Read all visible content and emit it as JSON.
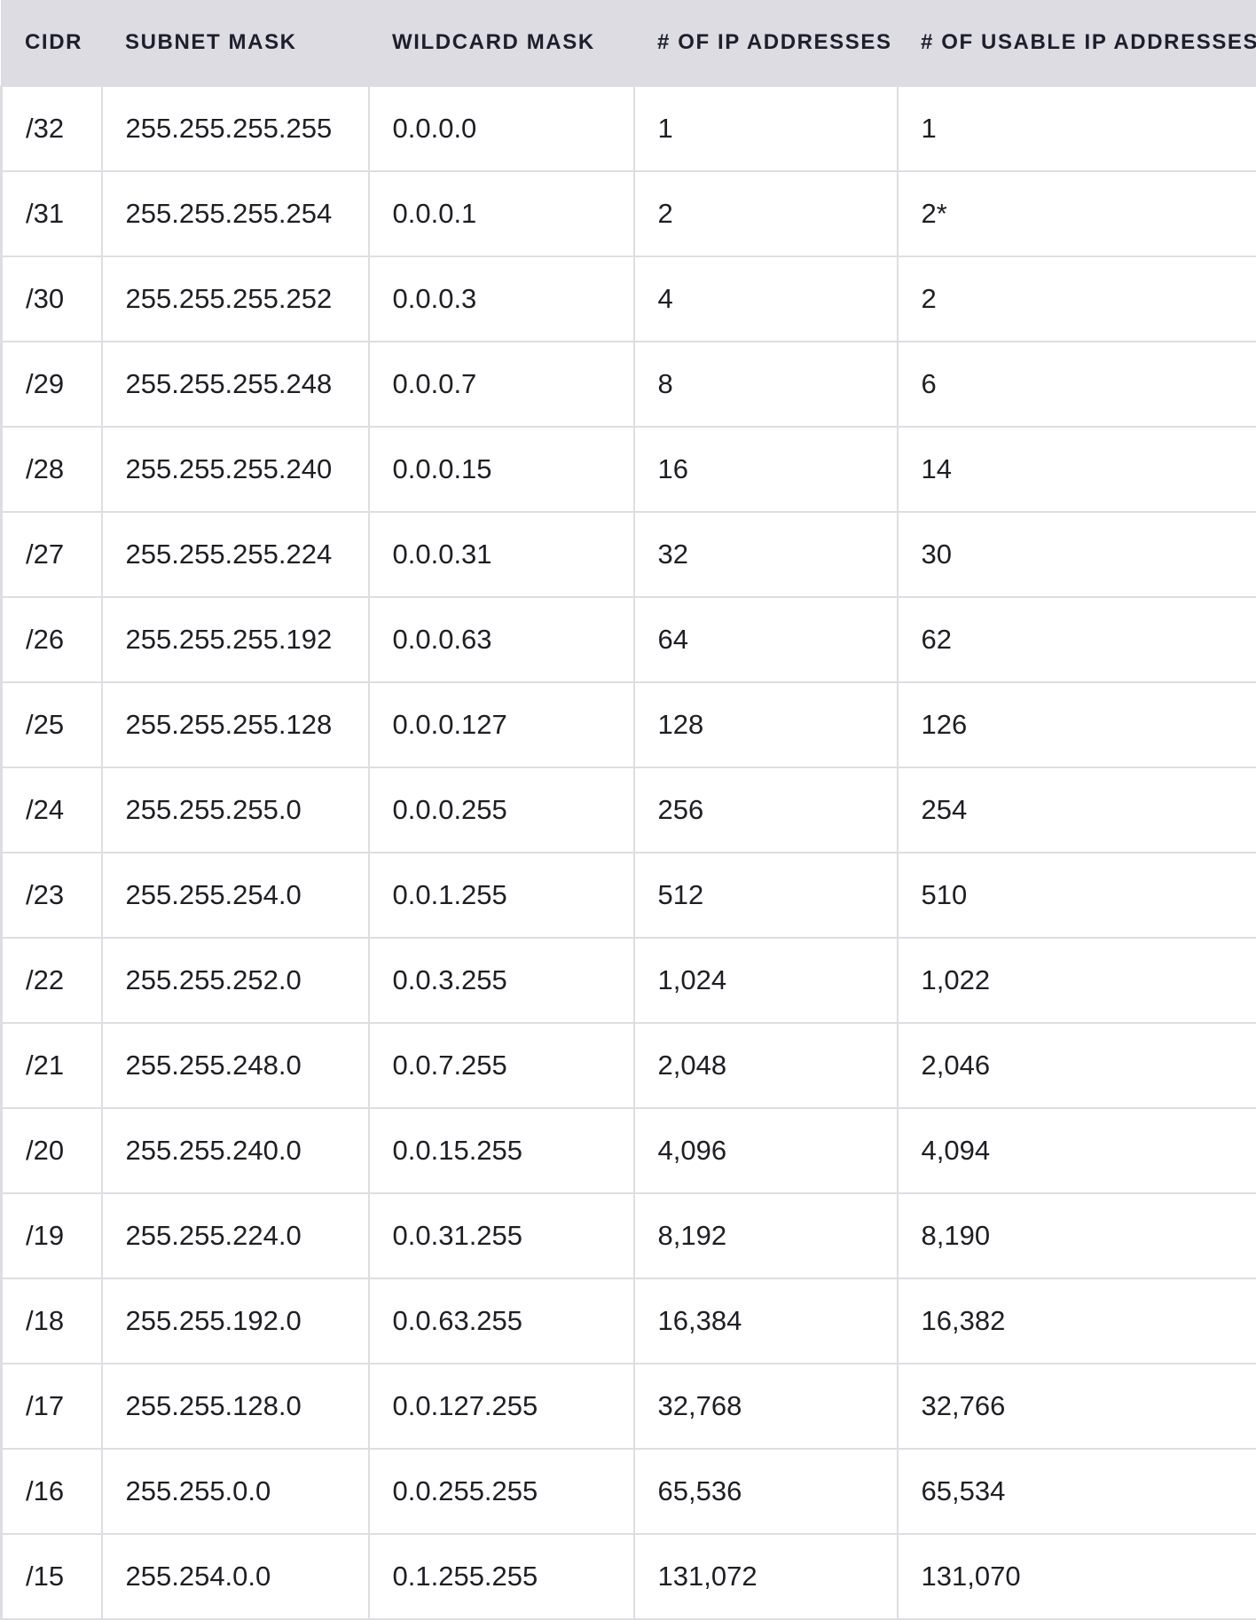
{
  "table": {
    "headers": [
      "CIDR",
      "SUBNET MASK",
      "WILDCARD MASK",
      "# OF IP ADDRESSES",
      "# OF USABLE IP ADDRESSES"
    ],
    "rows": [
      [
        "/32",
        "255.255.255.255",
        "0.0.0.0",
        "1",
        "1"
      ],
      [
        "/31",
        "255.255.255.254",
        "0.0.0.1",
        "2",
        "2*"
      ],
      [
        "/30",
        "255.255.255.252",
        "0.0.0.3",
        "4",
        "2"
      ],
      [
        "/29",
        "255.255.255.248",
        "0.0.0.7",
        "8",
        "6"
      ],
      [
        "/28",
        "255.255.255.240",
        "0.0.0.15",
        "16",
        "14"
      ],
      [
        "/27",
        "255.255.255.224",
        "0.0.0.31",
        "32",
        "30"
      ],
      [
        "/26",
        "255.255.255.192",
        "0.0.0.63",
        "64",
        "62"
      ],
      [
        "/25",
        "255.255.255.128",
        "0.0.0.127",
        "128",
        "126"
      ],
      [
        "/24",
        "255.255.255.0",
        "0.0.0.255",
        "256",
        "254"
      ],
      [
        "/23",
        "255.255.254.0",
        "0.0.1.255",
        "512",
        "510"
      ],
      [
        "/22",
        "255.255.252.0",
        "0.0.3.255",
        "1,024",
        "1,022"
      ],
      [
        "/21",
        "255.255.248.0",
        "0.0.7.255",
        "2,048",
        "2,046"
      ],
      [
        "/20",
        "255.255.240.0",
        "0.0.15.255",
        "4,096",
        "4,094"
      ],
      [
        "/19",
        "255.255.224.0",
        "0.0.31.255",
        "8,192",
        "8,190"
      ],
      [
        "/18",
        "255.255.192.0",
        "0.0.63.255",
        "16,384",
        "16,382"
      ],
      [
        "/17",
        "255.255.128.0",
        "0.0.127.255",
        "32,768",
        "32,766"
      ],
      [
        "/16",
        "255.255.0.0",
        "0.0.255.255",
        "65,536",
        "65,534"
      ],
      [
        "/15",
        "255.254.0.0",
        "0.1.255.255",
        "131,072",
        "131,070"
      ]
    ]
  }
}
